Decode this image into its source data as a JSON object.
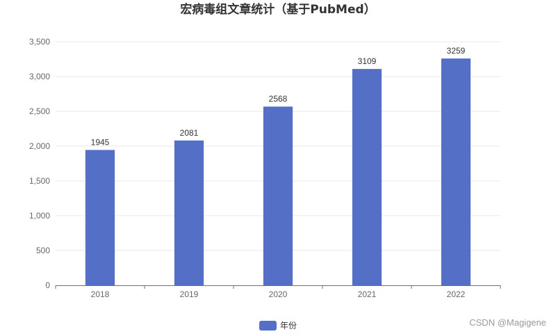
{
  "chart_data": {
    "type": "bar",
    "title": "宏病毒组文章统计（基于PubMed）",
    "categories": [
      "2018",
      "2019",
      "2020",
      "2021",
      "2022"
    ],
    "series": [
      {
        "name": "年份",
        "values": [
          1945,
          2081,
          2568,
          3109,
          3259
        ]
      }
    ],
    "data_labels": [
      "1945",
      "2081",
      "2568",
      "3109",
      "3259"
    ],
    "ylim": [
      0,
      3500
    ],
    "y_ticks": [
      "0",
      "500",
      "1,000",
      "1,500",
      "2,000",
      "2,500",
      "3,000",
      "3,500"
    ],
    "grid": true,
    "legend_position": "bottom-center",
    "bar_color": "#5470c6",
    "grid_color": "#e8e8e8",
    "axis_color": "#6e7079"
  },
  "watermark": "CSDN @Magigene"
}
